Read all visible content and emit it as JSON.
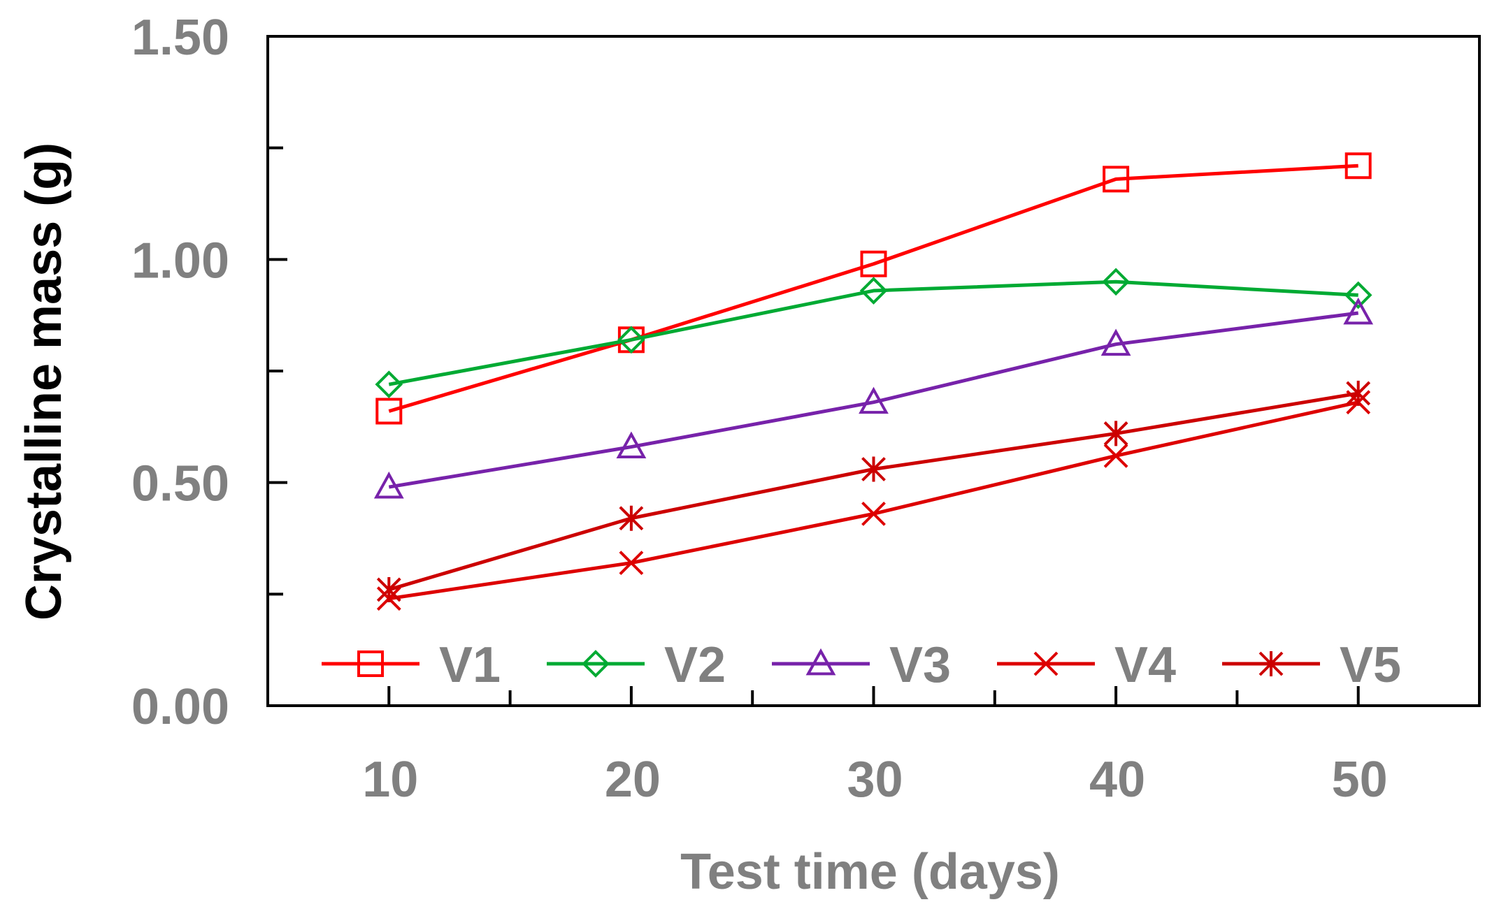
{
  "chart_data": {
    "type": "line",
    "title": "",
    "xlabel": "Test time (days)",
    "ylabel": "Crystalline mass (g)",
    "x": [
      10,
      20,
      30,
      40,
      50
    ],
    "x_tick_labels": [
      "10",
      "20",
      "30",
      "40",
      "50"
    ],
    "xlim": [
      5,
      55
    ],
    "ylim": [
      0,
      1.5
    ],
    "y_tick_labels": [
      "0.00",
      "0.50",
      "1.00",
      "1.50"
    ],
    "y_tick_values": [
      0,
      0.5,
      1.0,
      1.5
    ],
    "y_minor_ticks": [
      0.25,
      0.75,
      1.25
    ],
    "grid": false,
    "legend_position": "bottom inside plot, horizontal",
    "series": [
      {
        "name": "V1",
        "marker": "square",
        "color": "#ff0000",
        "values": [
          0.66,
          0.82,
          0.99,
          1.18,
          1.21
        ]
      },
      {
        "name": "V2",
        "marker": "diamond",
        "color": "#00aa33",
        "values": [
          0.72,
          0.82,
          0.93,
          0.95,
          0.92
        ]
      },
      {
        "name": "V3",
        "marker": "triangle",
        "color": "#7722aa",
        "values": [
          0.49,
          0.58,
          0.68,
          0.81,
          0.88
        ]
      },
      {
        "name": "V4",
        "marker": "x",
        "color": "#dd0000",
        "values": [
          0.24,
          0.32,
          0.43,
          0.56,
          0.68
        ]
      },
      {
        "name": "V5",
        "marker": "asterisk",
        "color": "#cc0000",
        "values": [
          0.26,
          0.42,
          0.53,
          0.61,
          0.7
        ]
      }
    ]
  }
}
